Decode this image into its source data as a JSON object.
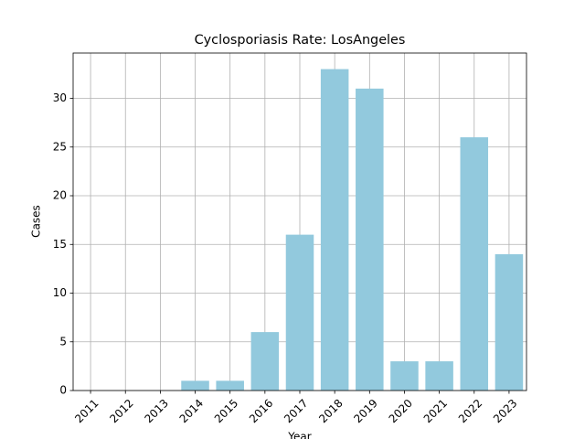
{
  "chart_data": {
    "type": "bar",
    "title": "Cyclosporiasis Rate: LosAngeles",
    "x_label": "Year",
    "y_label": "Cases",
    "categories": [
      "2011",
      "2012",
      "2013",
      "2014",
      "2015",
      "2016",
      "2017",
      "2018",
      "2019",
      "2020",
      "2021",
      "2022",
      "2023"
    ],
    "values": [
      0,
      0,
      0,
      1,
      1,
      6,
      16,
      33,
      31,
      3,
      3,
      26,
      14
    ],
    "color": "#92c9dd",
    "ylim": [
      0,
      34.65
    ],
    "yticks": [
      0,
      5,
      10,
      15,
      20,
      25,
      30
    ],
    "grid": true
  }
}
